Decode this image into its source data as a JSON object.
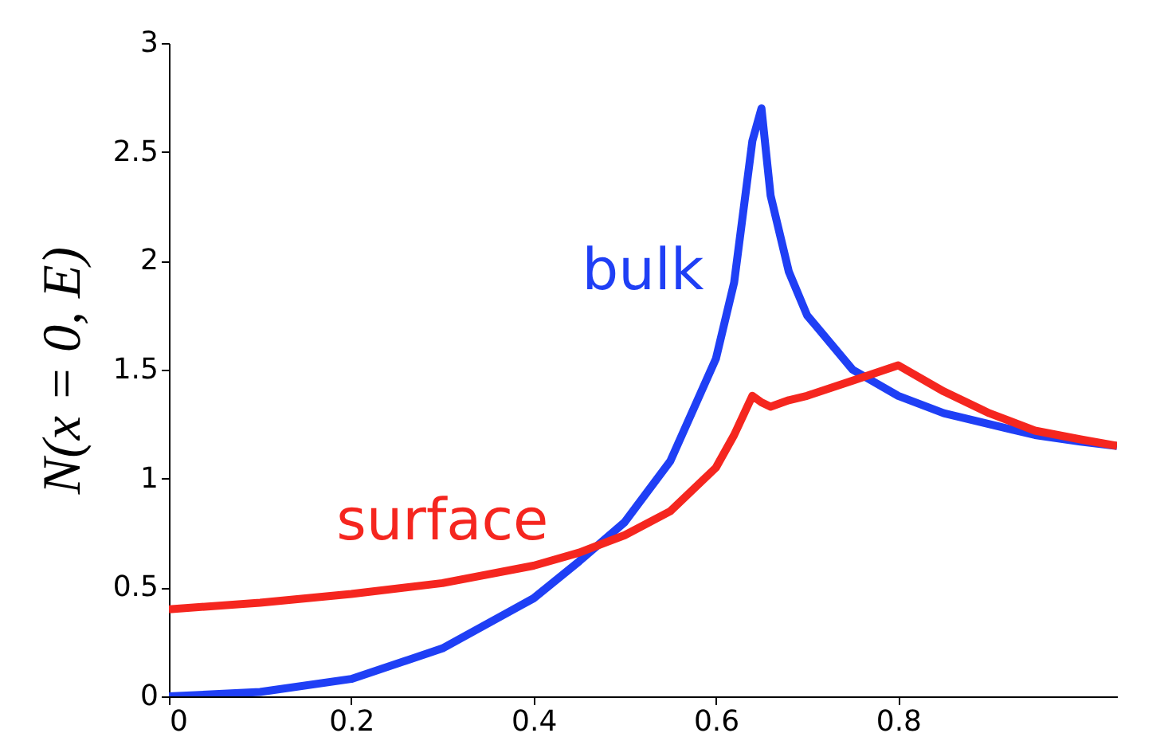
{
  "chart_data": {
    "type": "line",
    "ylabel": "N(x = 0, E)",
    "xlim": [
      0,
      1.04
    ],
    "ylim": [
      0,
      3
    ],
    "xticks": [
      0,
      0.2,
      0.4,
      0.6,
      0.8
    ],
    "yticks": [
      0,
      0.5,
      1,
      1.5,
      2,
      2.5,
      3
    ],
    "grid": false,
    "legend": false,
    "line_style": "solid",
    "marker": "none",
    "x": [
      0,
      0.1,
      0.2,
      0.3,
      0.4,
      0.45,
      0.5,
      0.55,
      0.6,
      0.62,
      0.64,
      0.65,
      0.66,
      0.68,
      0.7,
      0.75,
      0.8,
      0.85,
      0.9,
      0.95,
      1.0,
      1.04
    ],
    "series": [
      {
        "name": "bulk",
        "color": "#1f3ff5",
        "values": [
          0,
          0.02,
          0.08,
          0.22,
          0.45,
          0.62,
          0.8,
          1.08,
          1.55,
          1.9,
          2.55,
          2.7,
          2.3,
          1.95,
          1.75,
          1.5,
          1.38,
          1.3,
          1.25,
          1.2,
          1.17,
          1.15
        ]
      },
      {
        "name": "surface",
        "color": "#f5261f",
        "values": [
          0.4,
          0.43,
          0.47,
          0.52,
          0.6,
          0.66,
          0.74,
          0.85,
          1.05,
          1.2,
          1.38,
          1.35,
          1.33,
          1.36,
          1.38,
          1.45,
          1.52,
          1.4,
          1.3,
          1.22,
          1.18,
          1.15
        ]
      }
    ]
  }
}
